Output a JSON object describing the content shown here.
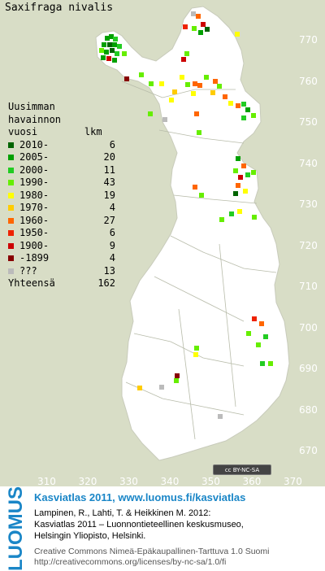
{
  "title": "Saxifraga nivalis",
  "legend": {
    "heading": [
      "Uusimman",
      "havainnon",
      "vuosi        lkm"
    ],
    "rows": [
      {
        "label": "2010-",
        "count": "6",
        "color": "#006400"
      },
      {
        "label": "2005-",
        "count": "20",
        "color": "#00a000"
      },
      {
        "label": "2000-",
        "count": "11",
        "color": "#22cc22"
      },
      {
        "label": "1990-",
        "count": "43",
        "color": "#66ee00"
      },
      {
        "label": "1980-",
        "count": "19",
        "color": "#ffff00"
      },
      {
        "label": "1970-",
        "count": "4",
        "color": "#ffcc00"
      },
      {
        "label": "1960-",
        "count": "27",
        "color": "#ff6600"
      },
      {
        "label": "1950-",
        "count": "6",
        "color": "#ee2200"
      },
      {
        "label": "1900-",
        "count": "9",
        "color": "#cc0000"
      },
      {
        "label": "-1899",
        "count": "4",
        "color": "#880000"
      },
      {
        "label": "???",
        "count": "13",
        "color": "#bbbbbb"
      }
    ],
    "total_label": "Yhteensä",
    "total_count": "162"
  },
  "y_ticks": [
    "770",
    "760",
    "750",
    "740",
    "730",
    "720",
    "710",
    "700",
    "690",
    "680",
    "670"
  ],
  "x_ticks": [
    "310",
    "320",
    "330",
    "340",
    "350",
    "360",
    "370"
  ],
  "license_badge": "cc BY-NC-SA",
  "footer": {
    "logo": "LUOMUS",
    "headline": "Kasviatlas 2011, www.luomus.fi/kasviatlas",
    "citation": [
      "Lampinen, R., Lahti, T. & Heikkinen M. 2012:",
      "Kasviatlas 2011 – Luonnontieteellinen keskusmuseo,",
      "Helsingin Yliopisto, Helsinki."
    ],
    "license": [
      "Creative Commons Nimeä-Epäkaupallinen-Tarttuva 1.0 Suomi",
      "http://creativecommons.org/licenses/by-nc-sa/1.0/fi"
    ]
  },
  "map_data": {
    "observations": [
      {
        "x": 132,
        "y": 47,
        "c": "#00a000"
      },
      {
        "x": 137,
        "y": 45,
        "c": "#00a000"
      },
      {
        "x": 142,
        "y": 48,
        "c": "#22cc22"
      },
      {
        "x": 128,
        "y": 55,
        "c": "#00a000"
      },
      {
        "x": 135,
        "y": 55,
        "c": "#006400"
      },
      {
        "x": 141,
        "y": 55,
        "c": "#00a000"
      },
      {
        "x": 147,
        "y": 57,
        "c": "#22cc22"
      },
      {
        "x": 125,
        "y": 62,
        "c": "#66ee00"
      },
      {
        "x": 131,
        "y": 64,
        "c": "#00a000"
      },
      {
        "x": 138,
        "y": 62,
        "c": "#006400"
      },
      {
        "x": 144,
        "y": 66,
        "c": "#22cc22"
      },
      {
        "x": 127,
        "y": 71,
        "c": "#00a000"
      },
      {
        "x": 134,
        "y": 72,
        "c": "#cc0000"
      },
      {
        "x": 141,
        "y": 74,
        "c": "#00a000"
      },
      {
        "x": 153,
        "y": 66,
        "c": "#66ee00"
      },
      {
        "x": 156,
        "y": 97,
        "c": "#880000"
      },
      {
        "x": 174,
        "y": 92,
        "c": "#66ee00"
      },
      {
        "x": 238,
        "y": 17,
        "c": "#bbbbbb"
      },
      {
        "x": 244,
        "y": 20,
        "c": "#ff6600"
      },
      {
        "x": 250,
        "y": 30,
        "c": "#cc0000"
      },
      {
        "x": 247,
        "y": 40,
        "c": "#00a000"
      },
      {
        "x": 239,
        "y": 35,
        "c": "#66ee00"
      },
      {
        "x": 228,
        "y": 33,
        "c": "#ee2200"
      },
      {
        "x": 255,
        "y": 36,
        "c": "#006400"
      },
      {
        "x": 292,
        "y": 42,
        "c": "#ffff00"
      },
      {
        "x": 230,
        "y": 66,
        "c": "#66ee00"
      },
      {
        "x": 226,
        "y": 73,
        "c": "#cc0000"
      },
      {
        "x": 186,
        "y": 103,
        "c": "#66ee00"
      },
      {
        "x": 199,
        "y": 103,
        "c": "#ffff00"
      },
      {
        "x": 215,
        "y": 113,
        "c": "#ffcc00"
      },
      {
        "x": 224,
        "y": 95,
        "c": "#ffff00"
      },
      {
        "x": 231,
        "y": 104,
        "c": "#66ee00"
      },
      {
        "x": 240,
        "y": 103,
        "c": "#ff6600"
      },
      {
        "x": 246,
        "y": 105,
        "c": "#ff6600"
      },
      {
        "x": 254,
        "y": 95,
        "c": "#66ee00"
      },
      {
        "x": 265,
        "y": 100,
        "c": "#ff6600"
      },
      {
        "x": 262,
        "y": 114,
        "c": "#ffcc00"
      },
      {
        "x": 270,
        "y": 106,
        "c": "#66ee00"
      },
      {
        "x": 277,
        "y": 119,
        "c": "#ff6600"
      },
      {
        "x": 284,
        "y": 127,
        "c": "#ffff00"
      },
      {
        "x": 293,
        "y": 130,
        "c": "#ff6600"
      },
      {
        "x": 300,
        "y": 128,
        "c": "#22cc22"
      },
      {
        "x": 305,
        "y": 135,
        "c": "#00a000"
      },
      {
        "x": 312,
        "y": 142,
        "c": "#66ee00"
      },
      {
        "x": 300,
        "y": 145,
        "c": "#22cc22"
      },
      {
        "x": 242,
        "y": 140,
        "c": "#ff6600"
      },
      {
        "x": 203,
        "y": 147,
        "c": "#bbbbbb"
      },
      {
        "x": 185,
        "y": 140,
        "c": "#66ee00"
      },
      {
        "x": 245,
        "y": 163,
        "c": "#66ee00"
      },
      {
        "x": 238,
        "y": 115,
        "c": "#ffff00"
      },
      {
        "x": 211,
        "y": 123,
        "c": "#ffff00"
      },
      {
        "x": 293,
        "y": 195,
        "c": "#00a000"
      },
      {
        "x": 300,
        "y": 204,
        "c": "#ff6600"
      },
      {
        "x": 290,
        "y": 210,
        "c": "#66ee00"
      },
      {
        "x": 296,
        "y": 218,
        "c": "#cc0000"
      },
      {
        "x": 305,
        "y": 215,
        "c": "#22cc22"
      },
      {
        "x": 312,
        "y": 212,
        "c": "#66ee00"
      },
      {
        "x": 293,
        "y": 228,
        "c": "#ff6600"
      },
      {
        "x": 302,
        "y": 235,
        "c": "#ffff00"
      },
      {
        "x": 290,
        "y": 238,
        "c": "#006400"
      },
      {
        "x": 240,
        "y": 230,
        "c": "#ff6600"
      },
      {
        "x": 248,
        "y": 240,
        "c": "#66ee00"
      },
      {
        "x": 273,
        "y": 270,
        "c": "#66ee00"
      },
      {
        "x": 285,
        "y": 263,
        "c": "#22cc22"
      },
      {
        "x": 295,
        "y": 260,
        "c": "#ffff00"
      },
      {
        "x": 313,
        "y": 267,
        "c": "#66ee00"
      },
      {
        "x": 313,
        "y": 392,
        "c": "#ee2200"
      },
      {
        "x": 322,
        "y": 398,
        "c": "#ff6600"
      },
      {
        "x": 306,
        "y": 410,
        "c": "#66ee00"
      },
      {
        "x": 327,
        "y": 414,
        "c": "#22cc22"
      },
      {
        "x": 318,
        "y": 424,
        "c": "#66ee00"
      },
      {
        "x": 323,
        "y": 447,
        "c": "#22cc22"
      },
      {
        "x": 333,
        "y": 447,
        "c": "#66ee00"
      },
      {
        "x": 242,
        "y": 428,
        "c": "#66ee00"
      },
      {
        "x": 241,
        "y": 436,
        "c": "#ffff00"
      },
      {
        "x": 218,
        "y": 462,
        "c": "#880000"
      },
      {
        "x": 217,
        "y": 468,
        "c": "#66ee00"
      },
      {
        "x": 172,
        "y": 477,
        "c": "#ffcc00"
      },
      {
        "x": 199,
        "y": 476,
        "c": "#bbbbbb"
      },
      {
        "x": 271,
        "y": 512,
        "c": "#bbbbbb"
      }
    ]
  }
}
